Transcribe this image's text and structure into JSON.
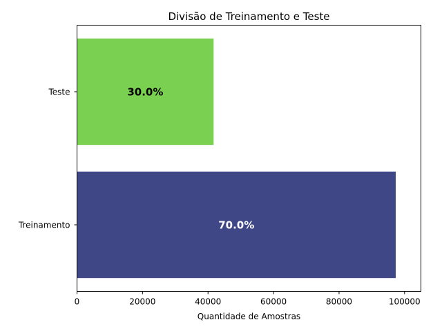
{
  "chart_data": {
    "type": "bar",
    "orientation": "horizontal",
    "title": "Divisão de Treinamento e Teste",
    "xlabel": "Quantidade de Amostras",
    "ylabel": "",
    "xlim": [
      0,
      105000
    ],
    "x_ticks": [
      0,
      20000,
      40000,
      60000,
      80000,
      100000
    ],
    "x_tick_labels": [
      "0",
      "20000",
      "40000",
      "60000",
      "80000",
      "100000"
    ],
    "categories": [
      "Treinamento",
      "Teste"
    ],
    "values": [
      97300,
      41700
    ],
    "bar_labels": [
      "70.0%",
      "30.0%"
    ],
    "colors": [
      "#404787",
      "#7ad151"
    ],
    "label_colors": [
      "#ffffff",
      "#000000"
    ],
    "grid": false
  }
}
